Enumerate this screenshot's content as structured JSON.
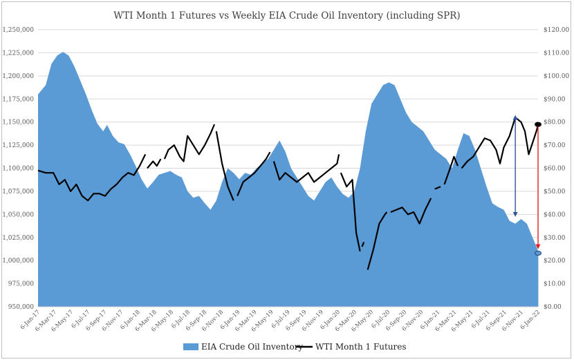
{
  "chart_data": {
    "type": "area+line",
    "title": "WTI Month 1 Futures vs Weekly EIA Crude Oil Inventory (including SPR)",
    "xlabel": "",
    "ylabel_left": "",
    "ylabel_right": "",
    "ylim_left": [
      950000,
      1250000
    ],
    "ylim_right": [
      0,
      120
    ],
    "left_ticks": [
      "950,000",
      "975,000",
      "1,000,000",
      "1,025,000",
      "1,050,000",
      "1,075,000",
      "1,100,000",
      "1,125,000",
      "1,150,000",
      "1,175,000",
      "1,200,000",
      "1,225,000",
      "1,250,000"
    ],
    "right_ticks": [
      "$0.00",
      "$10.00",
      "$20.00",
      "$30.00",
      "$40.00",
      "$50.00",
      "$60.00",
      "$70.00",
      "$80.00",
      "$90.00",
      "$100.00",
      "$110.00",
      "$120.00"
    ],
    "x_start": "2017-01-06",
    "x_end": "2022-01-06",
    "x_tick_labels": [
      "6-Jan-17",
      "6-Mar-17",
      "6-May-17",
      "6-Jul-17",
      "6-Sep-17",
      "6-Nov-17",
      "6-Jan-18",
      "6-Mar-18",
      "6-May-18",
      "6-Jul-18",
      "6-Sep-18",
      "6-Nov-18",
      "6-Jan-19",
      "6-Mar-19",
      "6-May-19",
      "6-Jul-19",
      "6-Sep-19",
      "6-Nov-19",
      "6-Jan-20",
      "6-Mar-20",
      "6-May-20",
      "6-Jul-20",
      "6-Sep-20",
      "6-Nov-20",
      "6-Jan-21",
      "6-Mar-21",
      "6-May-21",
      "6-Jul-21",
      "6-Sep-21",
      "6-Nov-21",
      "6-Jan-22"
    ],
    "legend_position": "bottom",
    "series": [
      {
        "name": "EIA Crude Oil Inventory",
        "kind": "area",
        "color": "#5b9bd5",
        "axis": "left",
        "points": [
          [
            "2017-01-06",
            1180000
          ],
          [
            "2017-02-03",
            1190000
          ],
          [
            "2017-02-24",
            1213000
          ],
          [
            "2017-03-17",
            1222000
          ],
          [
            "2017-04-07",
            1226000
          ],
          [
            "2017-04-28",
            1222000
          ],
          [
            "2017-05-19",
            1210000
          ],
          [
            "2017-06-09",
            1195000
          ],
          [
            "2017-06-30",
            1180000
          ],
          [
            "2017-07-21",
            1163000
          ],
          [
            "2017-08-11",
            1148000
          ],
          [
            "2017-09-01",
            1140000
          ],
          [
            "2017-09-15",
            1147000
          ],
          [
            "2017-10-06",
            1135000
          ],
          [
            "2017-10-27",
            1128000
          ],
          [
            "2017-11-17",
            1126000
          ],
          [
            "2017-12-08",
            1115000
          ],
          [
            "2017-12-29",
            1102000
          ],
          [
            "2018-01-19",
            1088000
          ],
          [
            "2018-02-09",
            1078000
          ],
          [
            "2018-03-02",
            1085000
          ],
          [
            "2018-03-23",
            1093000
          ],
          [
            "2018-04-13",
            1095000
          ],
          [
            "2018-05-04",
            1097000
          ],
          [
            "2018-05-25",
            1093000
          ],
          [
            "2018-06-15",
            1090000
          ],
          [
            "2018-07-06",
            1075000
          ],
          [
            "2018-07-27",
            1068000
          ],
          [
            "2018-08-17",
            1070000
          ],
          [
            "2018-09-07",
            1062000
          ],
          [
            "2018-09-28",
            1055000
          ],
          [
            "2018-10-19",
            1065000
          ],
          [
            "2018-11-09",
            1085000
          ],
          [
            "2018-11-30",
            1100000
          ],
          [
            "2018-12-21",
            1095000
          ],
          [
            "2019-01-11",
            1088000
          ],
          [
            "2019-02-01",
            1095000
          ],
          [
            "2019-02-22",
            1093000
          ],
          [
            "2019-03-15",
            1100000
          ],
          [
            "2019-04-05",
            1105000
          ],
          [
            "2019-04-26",
            1110000
          ],
          [
            "2019-05-17",
            1120000
          ],
          [
            "2019-06-07",
            1130000
          ],
          [
            "2019-06-28",
            1118000
          ],
          [
            "2019-07-19",
            1100000
          ],
          [
            "2019-08-09",
            1090000
          ],
          [
            "2019-08-30",
            1080000
          ],
          [
            "2019-09-20",
            1070000
          ],
          [
            "2019-10-11",
            1065000
          ],
          [
            "2019-11-01",
            1075000
          ],
          [
            "2019-11-22",
            1085000
          ],
          [
            "2019-12-13",
            1090000
          ],
          [
            "2020-01-03",
            1080000
          ],
          [
            "2020-01-24",
            1072000
          ],
          [
            "2020-02-14",
            1068000
          ],
          [
            "2020-03-06",
            1075000
          ],
          [
            "2020-03-27",
            1100000
          ],
          [
            "2020-04-17",
            1140000
          ],
          [
            "2020-05-08",
            1170000
          ],
          [
            "2020-05-29",
            1180000
          ],
          [
            "2020-06-19",
            1190000
          ],
          [
            "2020-07-10",
            1193000
          ],
          [
            "2020-07-31",
            1190000
          ],
          [
            "2020-08-21",
            1175000
          ],
          [
            "2020-09-11",
            1160000
          ],
          [
            "2020-10-02",
            1150000
          ],
          [
            "2020-10-23",
            1145000
          ],
          [
            "2020-11-13",
            1140000
          ],
          [
            "2020-12-04",
            1130000
          ],
          [
            "2020-12-25",
            1120000
          ],
          [
            "2021-01-15",
            1115000
          ],
          [
            "2021-02-05",
            1110000
          ],
          [
            "2021-02-26",
            1100000
          ],
          [
            "2021-03-19",
            1120000
          ],
          [
            "2021-04-09",
            1138000
          ],
          [
            "2021-04-30",
            1135000
          ],
          [
            "2021-05-21",
            1120000
          ],
          [
            "2021-06-11",
            1100000
          ],
          [
            "2021-07-02",
            1080000
          ],
          [
            "2021-07-23",
            1062000
          ],
          [
            "2021-08-13",
            1058000
          ],
          [
            "2021-09-03",
            1055000
          ],
          [
            "2021-09-24",
            1043000
          ],
          [
            "2021-10-15",
            1040000
          ],
          [
            "2021-11-05",
            1045000
          ],
          [
            "2021-11-26",
            1040000
          ],
          [
            "2021-12-17",
            1025000
          ],
          [
            "2022-01-07",
            1010000
          ]
        ]
      },
      {
        "name": "WTI Month 1 Futures",
        "kind": "line",
        "color": "#000000",
        "axis": "right",
        "segments": [
          [
            [
              "2017-01-06",
              59
            ],
            [
              "2017-02-03",
              58
            ],
            [
              "2017-03-03",
              58
            ],
            [
              "2017-03-24",
              53
            ],
            [
              "2017-04-14",
              55
            ],
            [
              "2017-05-05",
              50
            ],
            [
              "2017-05-26",
              53
            ],
            [
              "2017-06-16",
              48
            ],
            [
              "2017-07-07",
              46
            ],
            [
              "2017-07-28",
              49
            ],
            [
              "2017-08-18",
              49
            ],
            [
              "2017-09-08",
              48
            ],
            [
              "2017-09-29",
              51
            ],
            [
              "2017-10-20",
              53
            ],
            [
              "2017-11-10",
              56
            ],
            [
              "2017-12-01",
              58
            ],
            [
              "2017-12-22",
              57
            ],
            [
              "2018-01-12",
              61
            ],
            [
              "2018-02-02",
              66
            ]
          ],
          [
            [
              "2018-02-09",
              60
            ],
            [
              "2018-03-02",
              63
            ],
            [
              "2018-03-16",
              61
            ],
            [
              "2018-03-30",
              64
            ]
          ],
          [
            [
              "2018-04-13",
              64
            ],
            [
              "2018-04-27",
              68
            ],
            [
              "2018-05-18",
              70
            ],
            [
              "2018-06-08",
              65
            ],
            [
              "2018-06-22",
              63
            ],
            [
              "2018-07-06",
              74
            ],
            [
              "2018-07-27",
              70
            ],
            [
              "2018-08-17",
              66
            ],
            [
              "2018-09-07",
              70
            ],
            [
              "2018-09-28",
              75
            ],
            [
              "2018-10-12",
              79
            ]
          ],
          [
            [
              "2018-10-19",
              76
            ],
            [
              "2018-11-09",
              62
            ],
            [
              "2018-11-30",
              52
            ],
            [
              "2018-12-21",
              46
            ]
          ],
          [
            [
              "2019-01-04",
              48
            ],
            [
              "2019-01-25",
              54
            ],
            [
              "2019-02-15",
              56
            ],
            [
              "2019-03-08",
              58
            ],
            [
              "2019-03-29",
              61
            ],
            [
              "2019-04-19",
              64
            ],
            [
              "2019-05-03",
              67
            ]
          ],
          [
            [
              "2019-05-17",
              63
            ],
            [
              "2019-06-07",
              55
            ],
            [
              "2019-06-28",
              58
            ],
            [
              "2019-07-19",
              56
            ],
            [
              "2019-08-09",
              54
            ],
            [
              "2019-08-30",
              56
            ],
            [
              "2019-09-20",
              58
            ],
            [
              "2019-10-11",
              54
            ],
            [
              "2019-11-01",
              56
            ],
            [
              "2019-11-22",
              58
            ],
            [
              "2019-12-13",
              60
            ],
            [
              "2020-01-03",
              62
            ],
            [
              "2020-01-10",
              66
            ]
          ],
          [
            [
              "2020-01-17",
              58
            ],
            [
              "2020-02-07",
              52
            ],
            [
              "2020-02-28",
              55
            ],
            [
              "2020-03-13",
              32
            ],
            [
              "2020-03-27",
              24
            ]
          ],
          [
            [
              "2020-04-03",
              26
            ],
            [
              "2020-04-10",
              28
            ]
          ],
          [
            [
              "2020-04-24",
              16
            ],
            [
              "2020-05-15",
              25
            ],
            [
              "2020-06-05",
              36
            ],
            [
              "2020-06-26",
              40
            ],
            [
              "2020-07-03",
              41
            ]
          ],
          [
            [
              "2020-07-17",
              41
            ],
            [
              "2020-08-07",
              42
            ],
            [
              "2020-08-28",
              43
            ],
            [
              "2020-09-18",
              40
            ],
            [
              "2020-10-09",
              41
            ],
            [
              "2020-10-30",
              36
            ],
            [
              "2020-11-20",
              42
            ],
            [
              "2020-12-11",
              47
            ]
          ],
          [
            [
              "2020-12-25",
              51
            ],
            [
              "2021-01-15",
              52
            ]
          ],
          [
            [
              "2021-01-29",
              53
            ],
            [
              "2021-02-19",
              60
            ],
            [
              "2021-03-05",
              65
            ],
            [
              "2021-03-19",
              61
            ]
          ],
          [
            [
              "2021-04-02",
              60
            ],
            [
              "2021-04-23",
              63
            ],
            [
              "2021-05-14",
              65
            ],
            [
              "2021-06-04",
              69
            ],
            [
              "2021-06-25",
              73
            ],
            [
              "2021-07-16",
              72
            ],
            [
              "2021-08-06",
              68
            ],
            [
              "2021-08-20",
              62
            ],
            [
              "2021-09-03",
              69
            ],
            [
              "2021-09-24",
              74
            ],
            [
              "2021-10-15",
              82
            ],
            [
              "2021-11-05",
              80
            ],
            [
              "2021-11-19",
              76
            ],
            [
              "2021-12-03",
              66
            ],
            [
              "2021-12-17",
              71
            ],
            [
              "2021-12-31",
              76
            ],
            [
              "2022-01-07",
              79
            ]
          ]
        ]
      }
    ],
    "annotations": [
      {
        "name": "blue-double-arrow",
        "kind": "double-arrow",
        "color": "#2e5597",
        "x": "2021-10-15",
        "axis": "right",
        "from": 82,
        "to": 40
      },
      {
        "name": "red-double-arrow",
        "kind": "double-arrow",
        "color": "#e02020",
        "x": "2022-01-06",
        "axis": "right",
        "from": 79,
        "to": 26
      },
      {
        "name": "inventory-end-marker",
        "kind": "ellipse-marker",
        "color": "#5b9bd5",
        "outline": "#1f3f6f",
        "x": "2022-01-06",
        "axis": "left",
        "value": 1008000
      },
      {
        "name": "wti-end-marker",
        "kind": "ellipse-marker",
        "color": "#000000",
        "x": "2022-01-06",
        "axis": "right",
        "value": 79
      }
    ]
  }
}
